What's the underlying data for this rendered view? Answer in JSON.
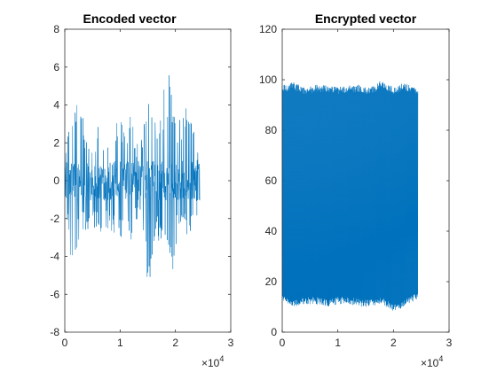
{
  "chart_data": [
    {
      "type": "line",
      "title": "Encoded vector",
      "xlabel": "",
      "ylabel": "",
      "xlim": [
        0,
        30000
      ],
      "ylim": [
        -8,
        8
      ],
      "xticks": [
        0,
        10000,
        20000,
        30000
      ],
      "xtick_labels": [
        "0",
        "1",
        "2",
        "3"
      ],
      "yticks": [
        -8,
        -6,
        -4,
        -2,
        0,
        2,
        4,
        6,
        8
      ],
      "ytick_labels": [
        "-8",
        "-6",
        "-4",
        "-2",
        "0",
        "2",
        "4",
        "6",
        "8"
      ],
      "x_exponent_label": "×10",
      "x_exponent_power": "4",
      "color": "#0072BD",
      "grid": false,
      "series": [
        {
          "n_points": 24400,
          "x_range": [
            0,
            24400
          ],
          "envelope": {
            "x": [
              0,
              1000,
              2000,
              3000,
              4000,
              5000,
              6000,
              7000,
              8000,
              9000,
              10000,
              11000,
              12000,
              13000,
              14000,
              15000,
              16000,
              17000,
              18000,
              19000,
              20000,
              21000,
              22000,
              23000,
              24400
            ],
            "y_max": [
              1.2,
              3.5,
              4.6,
              4.0,
              2.3,
              1.8,
              3.0,
              2.0,
              2.4,
              3.6,
              3.7,
              2.5,
              3.8,
              2.0,
              2.5,
              5.3,
              3.5,
              3.5,
              5.0,
              6.4,
              3.5,
              3.2,
              4.5,
              3.6,
              1.0
            ],
            "y_min": [
              -1.2,
              -4.5,
              -4.0,
              -2.5,
              -3.0,
              -2.6,
              -2.6,
              -2.8,
              -2.9,
              -3.2,
              -3.3,
              -1.9,
              -3.8,
              -2.1,
              -1.9,
              -6.2,
              -3.5,
              -3.3,
              -2.8,
              -6.7,
              -3.5,
              -2.8,
              -3.1,
              -2.9,
              -1.2
            ]
          }
        }
      ]
    },
    {
      "type": "line",
      "title": "Encrypted vector",
      "xlabel": "",
      "ylabel": "",
      "xlim": [
        0,
        30000
      ],
      "ylim": [
        0,
        120
      ],
      "xticks": [
        0,
        10000,
        20000,
        30000
      ],
      "xtick_labels": [
        "0",
        "1",
        "2",
        "3"
      ],
      "yticks": [
        0,
        20,
        40,
        60,
        80,
        100,
        120
      ],
      "ytick_labels": [
        "0",
        "20",
        "40",
        "60",
        "80",
        "100",
        "120"
      ],
      "x_exponent_label": "×10",
      "x_exponent_power": "4",
      "color": "#0072BD",
      "grid": false,
      "series": [
        {
          "n_points": 24400,
          "x_range": [
            0,
            24400
          ],
          "envelope": {
            "x": [
              0,
              2000,
              4000,
              6000,
              8000,
              10000,
              12000,
              14000,
              16000,
              18000,
              20000,
              22000,
              24400
            ],
            "y_max": [
              98,
              99,
              97,
              98,
              98,
              97,
              98,
              98,
              97,
              100,
              97,
              99,
              96
            ],
            "y_min": [
              12,
              10,
              11,
              11,
              10,
              11,
              11,
              10,
              10,
              11,
              8,
              10,
              13
            ]
          }
        }
      ]
    }
  ]
}
